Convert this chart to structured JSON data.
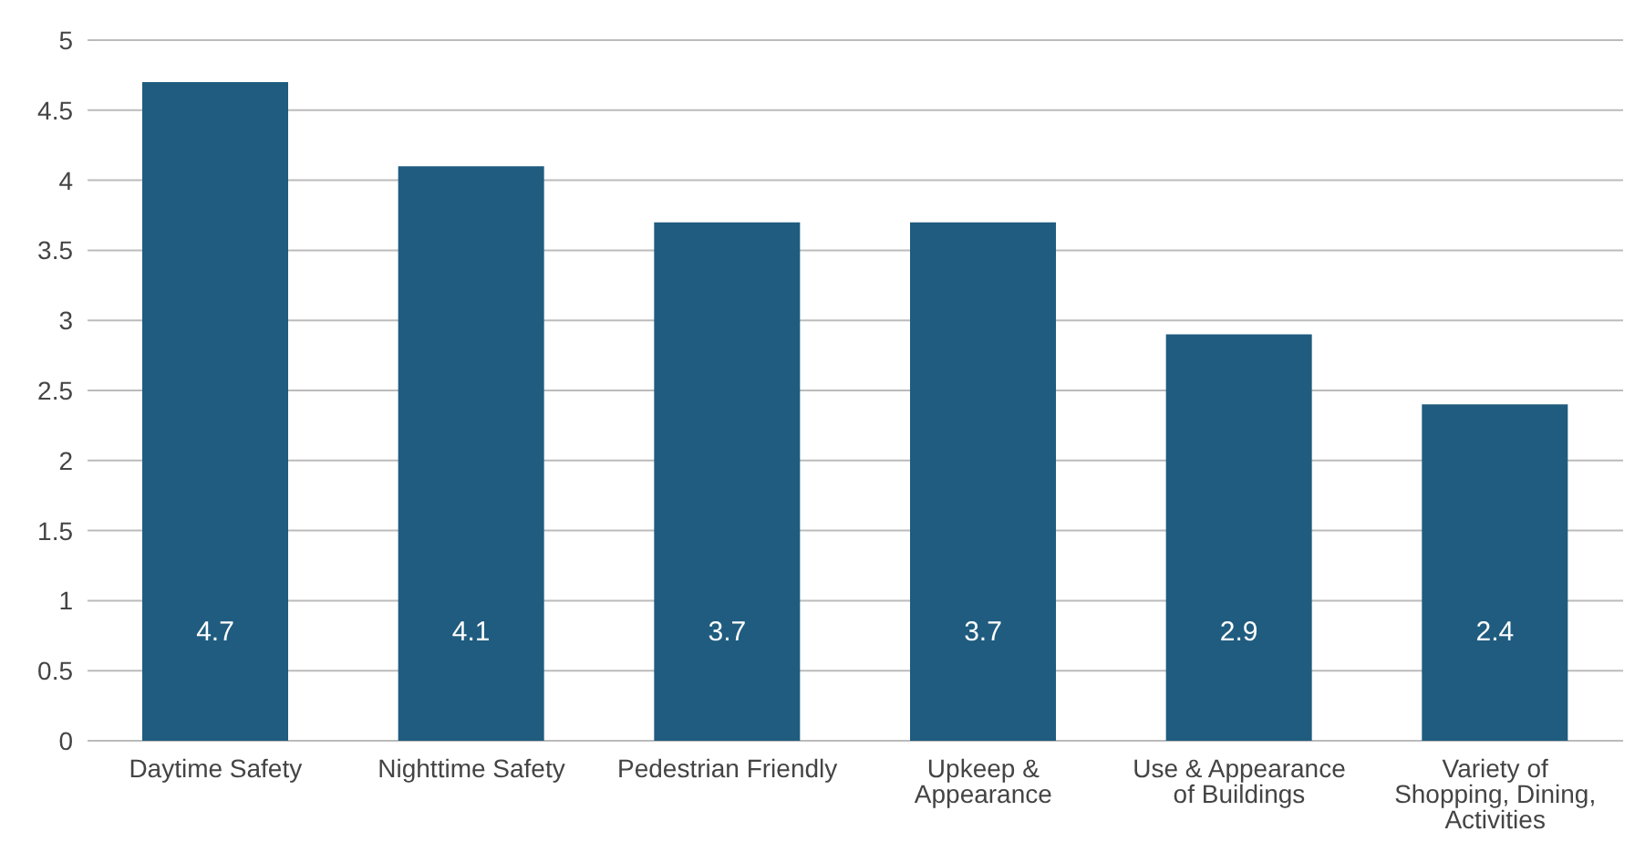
{
  "chart_data": {
    "type": "bar",
    "categories": [
      "Daytime Safety",
      "Nighttime Safety",
      "Pedestrian Friendly",
      "Upkeep & Appearance",
      "Use & Appearance of Buildings",
      "Variety of Shopping, Dining, Activities"
    ],
    "values": [
      4.7,
      4.1,
      3.7,
      3.7,
      2.9,
      2.4
    ],
    "color": "#1f5c7f",
    "ylim": [
      0,
      5
    ],
    "yticks": [
      0,
      0.5,
      1,
      1.5,
      2,
      2.5,
      3,
      3.5,
      4,
      4.5,
      5
    ],
    "grid": "y",
    "data_labels": true
  }
}
